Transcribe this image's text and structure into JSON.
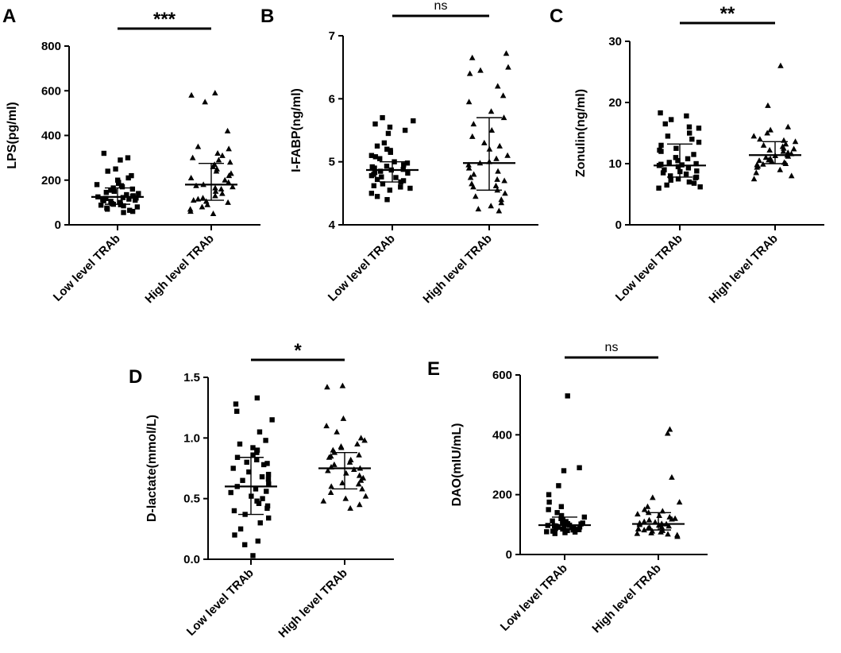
{
  "chart_data": [
    {
      "panel": "A",
      "type": "scatter",
      "ylabel": "LPS(pg/ml)",
      "ylim": [
        0,
        800
      ],
      "yticks": [
        0,
        200,
        400,
        600,
        800
      ],
      "ytick_labels": [
        "0",
        "200",
        "400",
        "600",
        "800"
      ],
      "categories": [
        "Low level TRAb",
        "High level TRAb"
      ],
      "significance": "***",
      "series": [
        {
          "name": "Low level TRAb",
          "marker": "square",
          "median": 125,
          "q1": 92,
          "q3": 165,
          "values": [
            320,
            300,
            290,
            250,
            240,
            220,
            210,
            200,
            190,
            185,
            180,
            175,
            170,
            165,
            160,
            155,
            150,
            145,
            140,
            135,
            130,
            128,
            125,
            122,
            120,
            118,
            115,
            112,
            110,
            108,
            105,
            100,
            95,
            92,
            90,
            88,
            85,
            80,
            75,
            70,
            65,
            60,
            55
          ]
        },
        {
          "name": "High level TRAb",
          "marker": "triangle",
          "median": 180,
          "q1": 110,
          "q3": 275,
          "values": [
            590,
            580,
            550,
            420,
            350,
            340,
            320,
            310,
            300,
            290,
            280,
            270,
            260,
            250,
            240,
            230,
            220,
            210,
            200,
            190,
            180,
            175,
            170,
            165,
            160,
            150,
            140,
            130,
            120,
            115,
            110,
            105,
            100,
            90,
            80,
            70,
            60,
            50
          ]
        }
      ]
    },
    {
      "panel": "B",
      "type": "scatter",
      "ylabel": "I-FABP(ng/ml)",
      "ylim": [
        4,
        7
      ],
      "yticks": [
        4,
        5,
        6,
        7
      ],
      "ytick_labels": [
        "4",
        "5",
        "6",
        "7"
      ],
      "categories": [
        "Low level TRAb",
        "High level TRAb"
      ],
      "significance": "ns",
      "series": [
        {
          "name": "Low level TRAb",
          "marker": "square",
          "median": 4.87,
          "q1": 4.68,
          "q3": 5.0,
          "values": [
            5.7,
            5.65,
            5.6,
            5.55,
            5.5,
            5.45,
            5.3,
            5.25,
            5.2,
            5.15,
            5.1,
            5.05,
            5.0,
            4.98,
            4.95,
            4.92,
            4.9,
            4.88,
            4.87,
            4.85,
            4.83,
            4.8,
            4.78,
            4.75,
            4.72,
            4.7,
            4.68,
            4.65,
            4.62,
            4.6,
            4.55,
            4.5,
            4.45,
            4.4,
            4.82,
            4.93,
            4.76,
            5.08,
            4.58,
            5.18
          ]
        },
        {
          "name": "High level TRAb",
          "marker": "triangle",
          "median": 4.98,
          "q1": 4.55,
          "q3": 5.7,
          "values": [
            6.72,
            6.65,
            6.5,
            6.45,
            6.4,
            6.2,
            6.05,
            5.95,
            5.8,
            5.7,
            5.5,
            5.4,
            5.3,
            5.2,
            5.1,
            5.05,
            5.0,
            4.98,
            4.95,
            4.9,
            4.85,
            4.8,
            4.75,
            4.7,
            4.65,
            4.6,
            4.55,
            4.5,
            4.45,
            4.4,
            4.35,
            4.3,
            4.25,
            4.22,
            5.25,
            4.72,
            5.6,
            4.62
          ]
        }
      ]
    },
    {
      "panel": "C",
      "type": "scatter",
      "ylabel": "Zonulin(ng/ml)",
      "ylim": [
        0,
        30
      ],
      "yticks": [
        0,
        10,
        20,
        30
      ],
      "ytick_labels": [
        "0",
        "10",
        "20",
        "30"
      ],
      "categories": [
        "Low level TRAb",
        "High level TRAb"
      ],
      "significance": "**",
      "series": [
        {
          "name": "Low level TRAb",
          "marker": "square",
          "median": 9.7,
          "q1": 7.8,
          "q3": 13.2,
          "values": [
            18.3,
            17.8,
            17.2,
            16.5,
            15.8,
            15.0,
            14.5,
            14.0,
            13.5,
            13.0,
            12.5,
            12.0,
            11.5,
            11.0,
            10.5,
            10.2,
            10.0,
            9.8,
            9.7,
            9.5,
            9.3,
            9.0,
            8.8,
            8.5,
            8.3,
            8.0,
            7.8,
            7.5,
            7.3,
            7.0,
            6.8,
            6.5,
            6.2,
            6.0,
            9.9,
            10.8,
            8.7,
            12.2,
            16.0,
            7.7
          ]
        },
        {
          "name": "High level TRAb",
          "marker": "triangle",
          "median": 11.4,
          "q1": 10.0,
          "q3": 13.6,
          "values": [
            26.0,
            19.5,
            16.0,
            15.5,
            15.0,
            14.5,
            14.0,
            13.6,
            13.2,
            13.0,
            12.8,
            12.5,
            12.2,
            12.0,
            11.8,
            11.6,
            11.4,
            11.2,
            11.0,
            10.8,
            10.6,
            10.4,
            10.2,
            10.0,
            9.8,
            9.6,
            9.4,
            9.0,
            8.5,
            8.0,
            7.5,
            12.4,
            11.3,
            10.5,
            13.8,
            9.9
          ]
        }
      ]
    },
    {
      "panel": "D",
      "type": "scatter",
      "ylabel": "D-lactate(mmol/L)",
      "ylim": [
        0.0,
        1.5
      ],
      "yticks": [
        0.0,
        0.5,
        1.0,
        1.5
      ],
      "ytick_labels": [
        "0.0",
        "0.5",
        "1.0",
        "1.5"
      ],
      "categories": [
        "Low level TRAb",
        "High level TRAb"
      ],
      "significance": "*",
      "series": [
        {
          "name": "Low level TRAb",
          "marker": "square",
          "median": 0.6,
          "q1": 0.37,
          "q3": 0.84,
          "values": [
            1.33,
            1.28,
            1.22,
            1.15,
            1.05,
            0.98,
            0.95,
            0.92,
            0.9,
            0.88,
            0.86,
            0.84,
            0.82,
            0.8,
            0.78,
            0.75,
            0.72,
            0.7,
            0.68,
            0.65,
            0.62,
            0.6,
            0.58,
            0.55,
            0.52,
            0.5,
            0.48,
            0.46,
            0.44,
            0.42,
            0.4,
            0.37,
            0.34,
            0.3,
            0.25,
            0.2,
            0.15,
            0.12,
            0.03,
            0.66,
            0.56,
            0.79
          ]
        },
        {
          "name": "High level TRAb",
          "marker": "triangle",
          "median": 0.75,
          "q1": 0.58,
          "q3": 0.88,
          "values": [
            1.43,
            1.42,
            1.16,
            1.1,
            1.05,
            1.0,
            0.98,
            0.95,
            0.92,
            0.9,
            0.88,
            0.86,
            0.84,
            0.82,
            0.8,
            0.78,
            0.76,
            0.75,
            0.73,
            0.71,
            0.69,
            0.67,
            0.65,
            0.62,
            0.6,
            0.58,
            0.55,
            0.52,
            0.5,
            0.48,
            0.45,
            0.42,
            0.85,
            0.74,
            0.63,
            0.93
          ]
        }
      ]
    },
    {
      "panel": "E",
      "type": "scatter",
      "ylabel": "DAO(mIU/mL)",
      "ylim": [
        0,
        600
      ],
      "yticks": [
        0,
        200,
        400,
        600
      ],
      "ytick_labels": [
        "0",
        "200",
        "400",
        "600"
      ],
      "categories": [
        "Low level TRAb",
        "High level TRAb"
      ],
      "significance": "ns",
      "series": [
        {
          "name": "Low level TRAb",
          "marker": "square",
          "median": 98,
          "q1": 85,
          "q3": 125,
          "values": [
            530,
            290,
            280,
            230,
            200,
            175,
            160,
            150,
            140,
            130,
            125,
            120,
            115,
            110,
            108,
            105,
            102,
            100,
            98,
            96,
            95,
            93,
            92,
            90,
            88,
            87,
            86,
            85,
            84,
            83,
            82,
            80,
            78,
            76,
            75,
            73,
            70,
            97,
            103,
            91,
            112
          ]
        },
        {
          "name": "High level TRAb",
          "marker": "triangle",
          "median": 102,
          "q1": 82,
          "q3": 140,
          "values": [
            418,
            405,
            258,
            190,
            175,
            160,
            150,
            145,
            140,
            135,
            130,
            125,
            120,
            115,
            110,
            108,
            105,
            102,
            100,
            98,
            95,
            92,
            90,
            88,
            85,
            82,
            80,
            78,
            75,
            72,
            70,
            68,
            65,
            60,
            103,
            118,
            86
          ]
        }
      ]
    }
  ]
}
